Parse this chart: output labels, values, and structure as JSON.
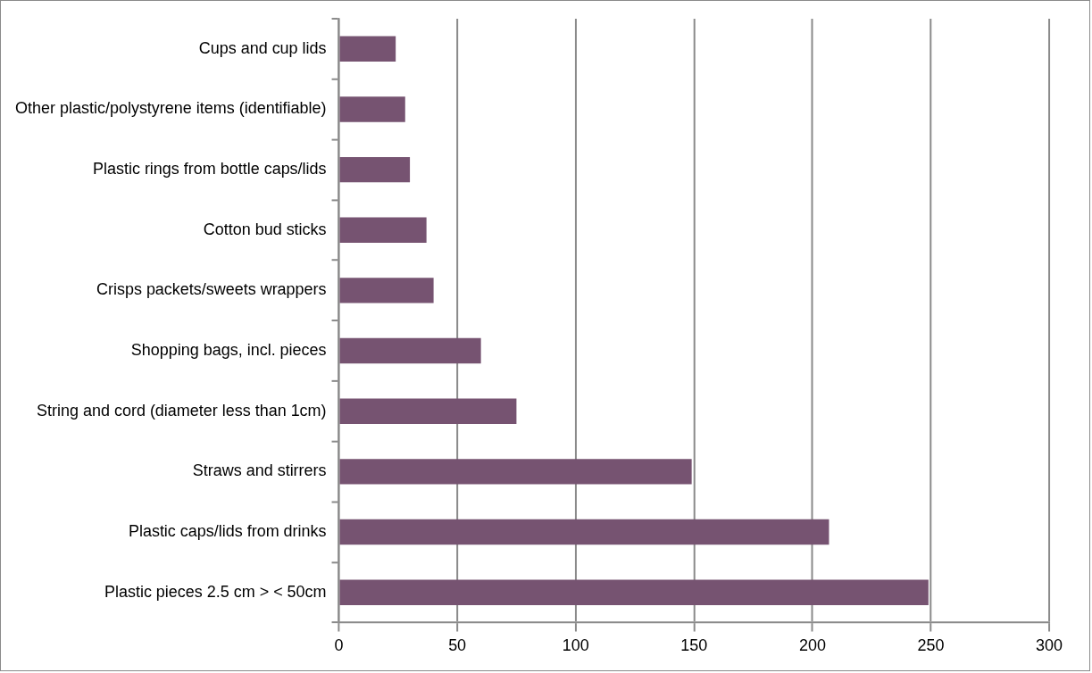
{
  "chart_data": {
    "type": "bar",
    "orientation": "horizontal",
    "categories": [
      "Cups and cup lids",
      "Other plastic/polystyrene items (identifiable)",
      "Plastic rings from bottle caps/lids",
      "Cotton bud sticks",
      "Crisps packets/sweets wrappers",
      "Shopping bags, incl. pieces",
      "String and cord (diameter less than 1cm)",
      "Straws and stirrers",
      "Plastic caps/lids from drinks",
      "Plastic pieces 2.5 cm > < 50cm"
    ],
    "values": [
      24,
      28,
      30,
      37,
      40,
      60,
      75,
      149,
      207,
      249
    ],
    "color": "#765371",
    "xlim": [
      0,
      300
    ],
    "xticks": [
      0,
      50,
      100,
      150,
      200,
      250,
      300
    ],
    "grid": "x",
    "legend": false
  }
}
